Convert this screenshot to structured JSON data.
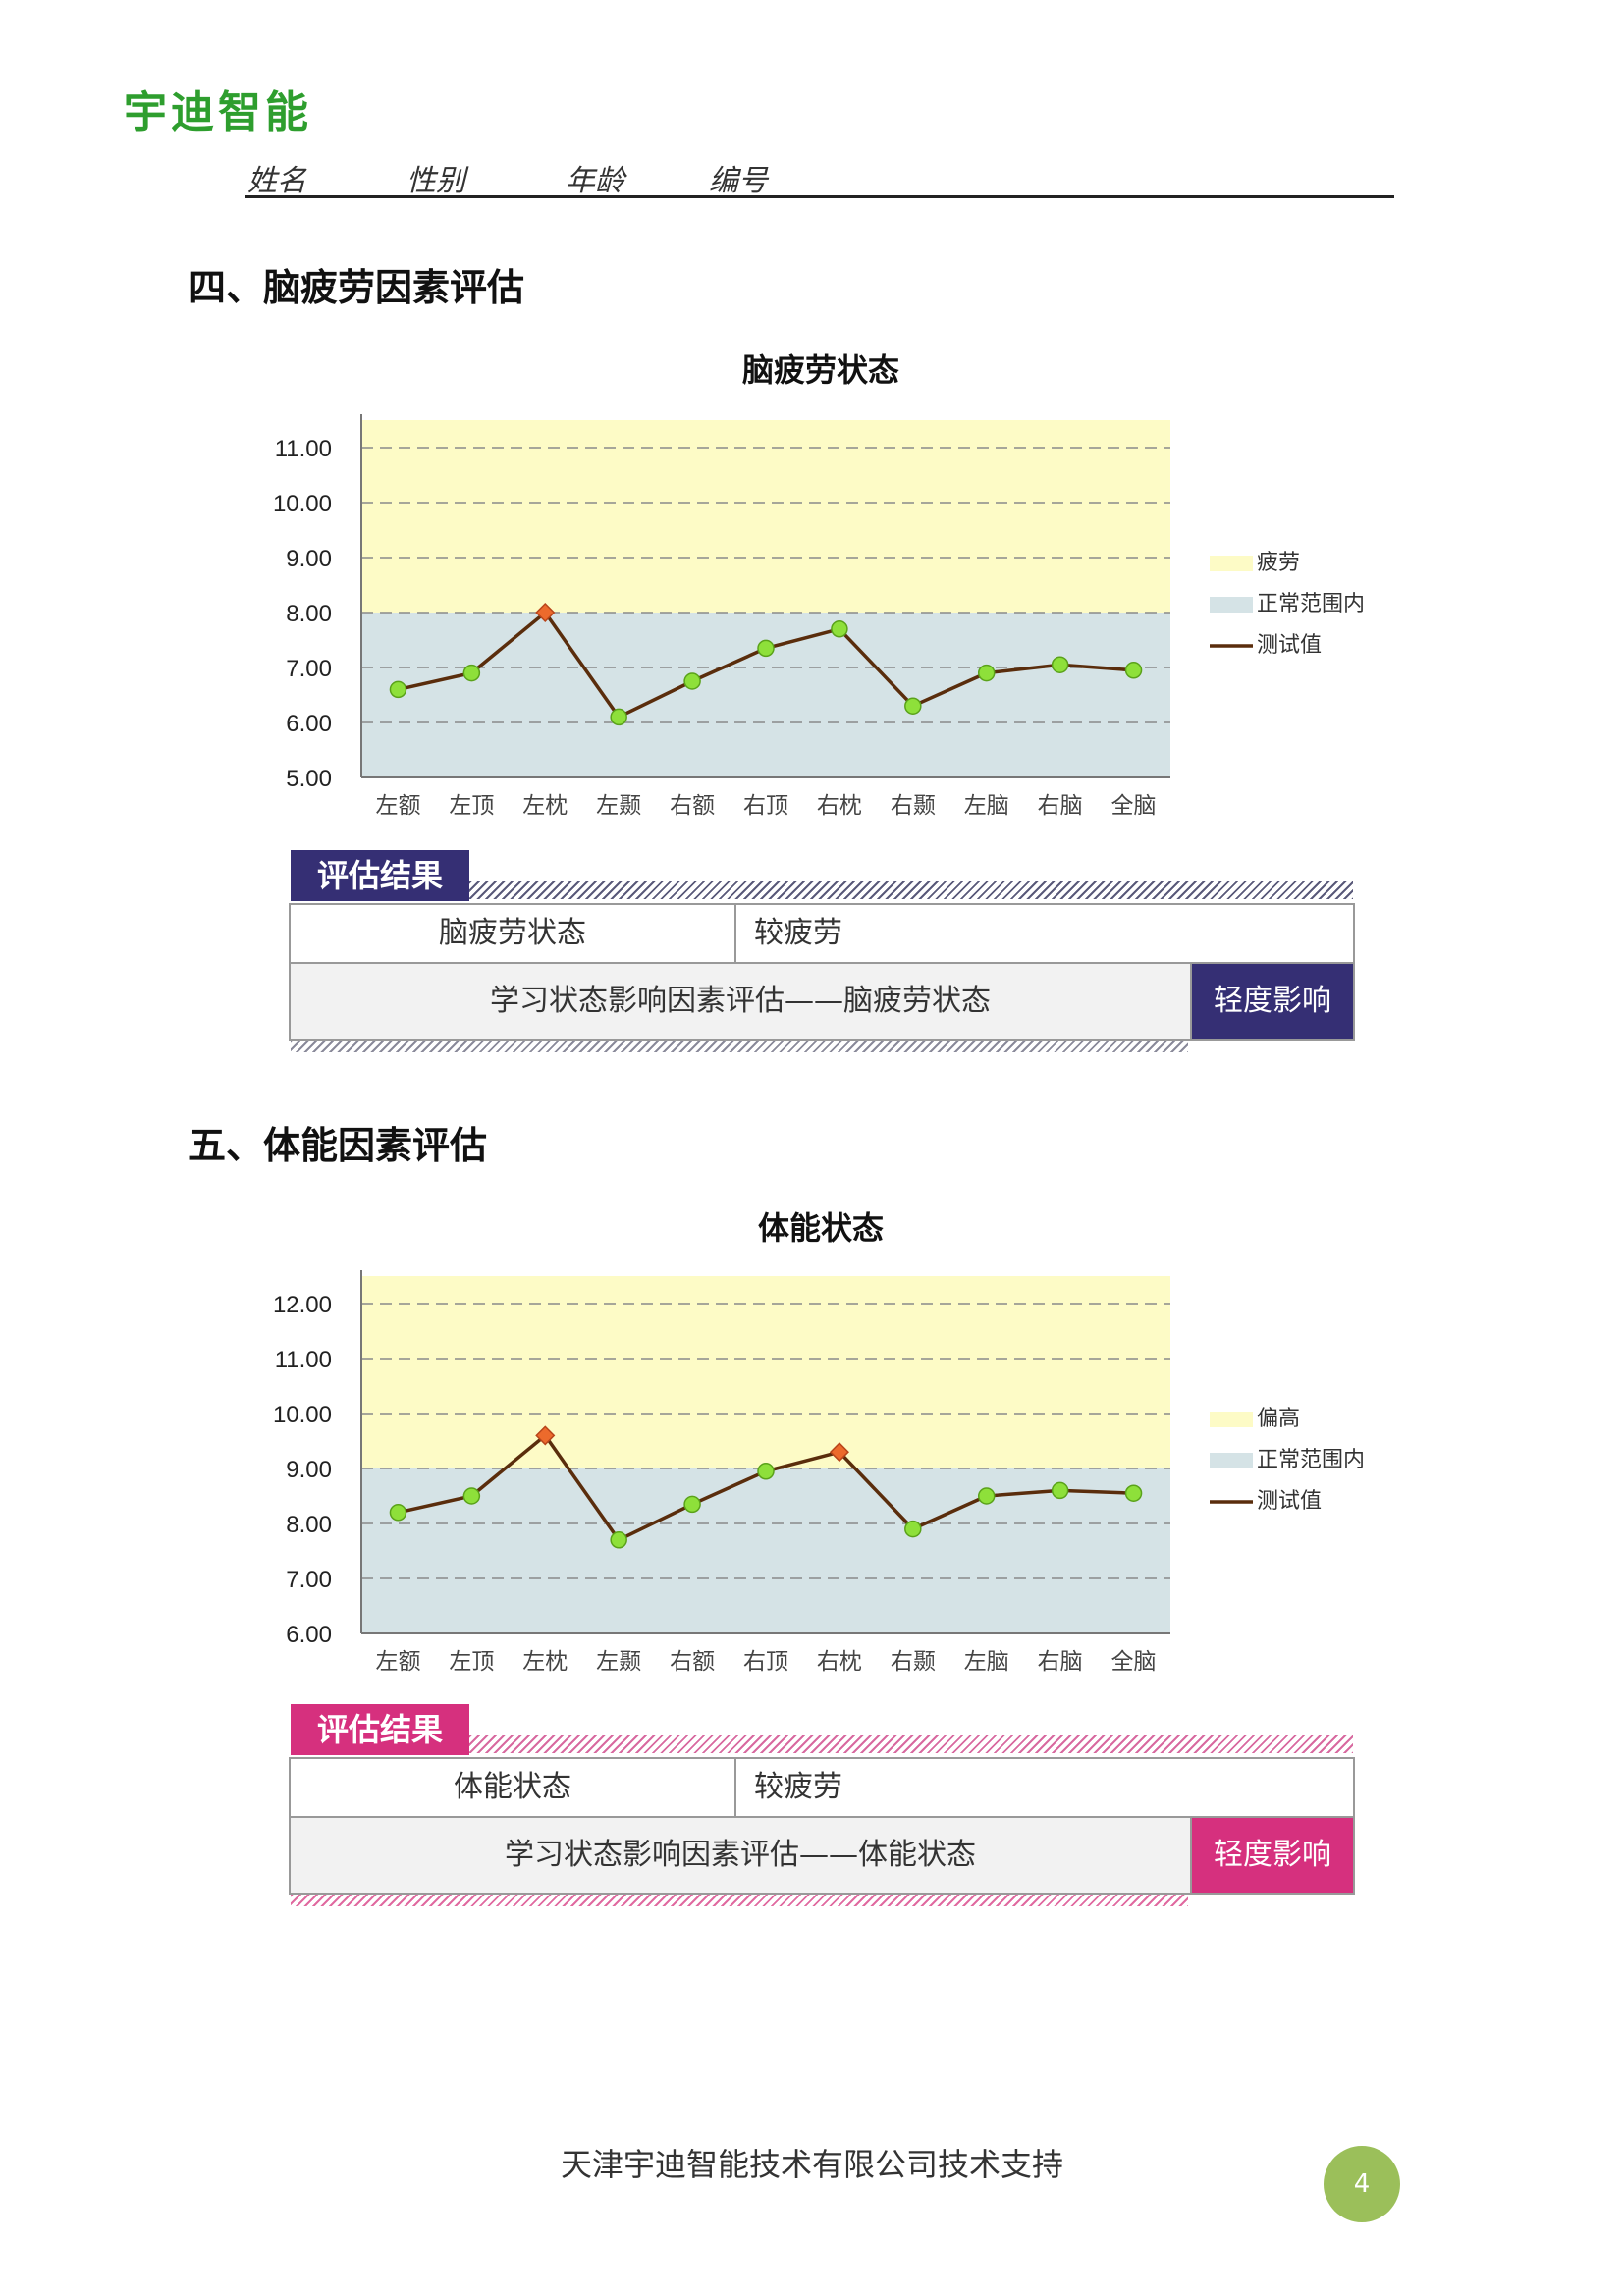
{
  "logo": "宇迪智能",
  "header": {
    "name": "姓名",
    "gender": "性别",
    "age": "年龄",
    "id": "编号"
  },
  "sections": [
    {
      "title": "四、脑疲劳因素评估",
      "chart_title": "脑疲劳状态",
      "result_tab": "评估结果",
      "row1_label": "脑疲劳状态",
      "row1_value": "较疲劳",
      "row2_label": "学习状态影响因素评估——脑疲劳状态",
      "row2_badge": "轻度影响",
      "accent": "#352f74"
    },
    {
      "title": "五、体能因素评估",
      "chart_title": "体能状态",
      "result_tab": "评估结果",
      "row1_label": "体能状态",
      "row1_value": "较疲劳",
      "row2_label": "学习状态影响因素评估——体能状态",
      "row2_badge": "轻度影响",
      "accent": "#d6307e"
    }
  ],
  "chart_data": [
    {
      "type": "line",
      "title": "脑疲劳状态",
      "categories": [
        "左额",
        "左顶",
        "左枕",
        "左颞",
        "右额",
        "右顶",
        "右枕",
        "右颞",
        "左脑",
        "右脑",
        "全脑"
      ],
      "series": [
        {
          "name": "测试值",
          "values": [
            6.6,
            6.9,
            8.0,
            6.1,
            6.75,
            7.35,
            7.7,
            6.3,
            6.9,
            7.05,
            6.95
          ]
        }
      ],
      "bands": [
        {
          "name": "疲劳",
          "from": 8.0,
          "to": 11.5,
          "color": "#fdfbc6"
        },
        {
          "name": "正常范围内",
          "from": 5.0,
          "to": 8.0,
          "color": "#d5e3e6"
        }
      ],
      "threshold": 8.0,
      "ylim": [
        5.0,
        11.5
      ],
      "yticks": [
        "5.00",
        "6.00",
        "7.00",
        "8.00",
        "9.00",
        "10.00",
        "11.00"
      ],
      "legend": [
        "疲劳",
        "正常范围内",
        "测试值"
      ],
      "legend_position": "right",
      "grid": true
    },
    {
      "type": "line",
      "title": "体能状态",
      "categories": [
        "左额",
        "左顶",
        "左枕",
        "左颞",
        "右额",
        "右顶",
        "右枕",
        "右颞",
        "左脑",
        "右脑",
        "全脑"
      ],
      "series": [
        {
          "name": "测试值",
          "values": [
            8.2,
            8.5,
            9.6,
            7.7,
            8.35,
            8.95,
            9.3,
            7.9,
            8.5,
            8.6,
            8.55
          ]
        }
      ],
      "bands": [
        {
          "name": "偏高",
          "from": 9.0,
          "to": 12.5,
          "color": "#fdfbc6"
        },
        {
          "name": "正常范围内",
          "from": 6.0,
          "to": 9.0,
          "color": "#d5e3e6"
        }
      ],
      "threshold": 9.0,
      "ylim": [
        6.0,
        12.5
      ],
      "yticks": [
        "6.00",
        "7.00",
        "8.00",
        "9.00",
        "10.00",
        "11.00",
        "12.00"
      ],
      "legend": [
        "偏高",
        "正常范围内",
        "测试值"
      ],
      "legend_position": "right",
      "grid": true
    }
  ],
  "footer": "天津宇迪智能技术有限公司技术支持",
  "page_number": "4"
}
